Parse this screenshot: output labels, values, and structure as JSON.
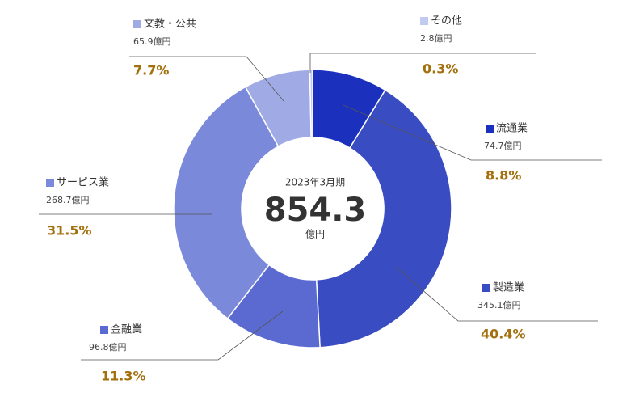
{
  "chart_data": {
    "type": "donut",
    "title": "2023年3月期",
    "total": 854.3,
    "total_unit": "億円",
    "categories": [
      "流通業",
      "製造業",
      "金融業",
      "サービス業",
      "文教・公共",
      "その他"
    ],
    "values": [
      74.7,
      345.1,
      96.8,
      268.7,
      65.9,
      2.8
    ],
    "value_labels": [
      "74.7億円",
      "345.1億円",
      "96.8億円",
      "268.7億円",
      "65.9億円",
      "2.8億円"
    ],
    "percents": [
      8.8,
      40.4,
      11.3,
      31.5,
      7.7,
      0.3
    ],
    "percent_labels": [
      "8.8%",
      "40.4%",
      "11.3%",
      "31.5%",
      "7.7%",
      "0.3%"
    ],
    "colors": [
      "#1c30be",
      "#394cc2",
      "#5a6ad0",
      "#7a89d9",
      "#a0abe5",
      "#c3caf0"
    ]
  }
}
